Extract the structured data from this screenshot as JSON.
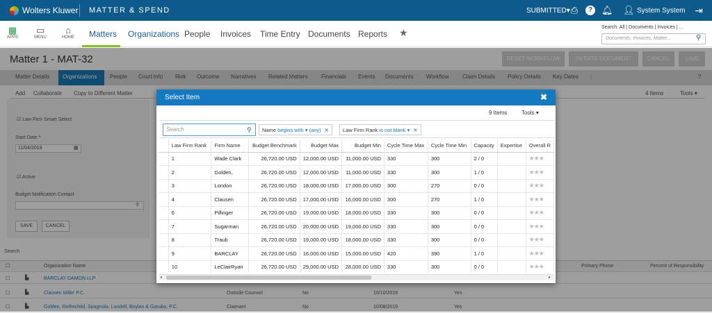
{
  "topbar": {
    "brand": "Wolters Kluwer",
    "product": "MATTER & SPEND",
    "submitted": "SUBMITTED▾",
    "user": "System System"
  },
  "apps": [
    {
      "label": "APPS",
      "glyph": "▦"
    },
    {
      "label": "MENU",
      "glyph": "▭"
    },
    {
      "label": "HOME",
      "glyph": "⌂"
    }
  ],
  "nav": {
    "items": [
      "Matters",
      "Organizations",
      "People",
      "Invoices",
      "Time Entry",
      "Documents",
      "Reports",
      "★"
    ],
    "search_scope": "Search: All | Documents | Invoices | ...",
    "search_placeholder": "Documents, Invoices, Matter..."
  },
  "matter": {
    "title": "Matter 1 - MAT-32",
    "buttons": [
      "RESET WORKFLOW",
      "INITIATE DOCUMENT",
      "CANCEL",
      "SAVE"
    ]
  },
  "tabs": [
    "Matter Details",
    "Organizations",
    "People",
    "Court Info",
    "Risk",
    "Outcome",
    "Narratives",
    "Related Matters",
    "Financials",
    "Events",
    "Documents",
    "Workflow",
    "Claim Details",
    "Policy Details",
    "Key Dates"
  ],
  "subtabs": [
    "Add",
    "Collaborate",
    "Copy to Different Matter"
  ],
  "subright": {
    "items": "4 Items",
    "tools": "Tools ▾"
  },
  "leftpanel": {
    "smart_select": "Law Firm Smart Select",
    "start_date_label": "Start Date *",
    "start_date": "11/04/2019",
    "active": "Active",
    "budget_contact": "Budget Notification Contact",
    "save": "SAVE",
    "cancel": "CANCEL"
  },
  "bottom": {
    "search": "Search",
    "headers": [
      "Organization Name",
      "Primary Phone",
      "Percent of Responsibility"
    ],
    "rows": [
      [
        "BARCLAY DAMON LLP",
        "",
        "",
        "",
        ""
      ],
      [
        "Clausen Miller P.C.",
        "Outside Counsel",
        "No",
        "10/10/2019",
        "Yes"
      ],
      [
        "Golden, Rothschild, Spagnola, Lundell, Boylan & Garubo, P.C.",
        "Claimant",
        "No",
        "10/08/2019",
        "Yes"
      ]
    ]
  },
  "modal": {
    "title": "Select Item",
    "close": "✖",
    "count": "9 Items",
    "tools": "Tools ▾",
    "search_placeholder": "Search",
    "filters": [
      {
        "field": "Name",
        "op": "begins with ▾",
        "value": "(any)"
      },
      {
        "field": "Law Firm Rank",
        "op": "is not blank ▾",
        "value": ""
      }
    ],
    "columns": [
      "Law Firm Rank",
      "Firm Name",
      "Budget Benchmark",
      "Budget Max",
      "Budget Min",
      "Cycle Time Max",
      "Cycle Time Min",
      "Capacity",
      "Expertise",
      "Overall R"
    ],
    "rows": [
      [
        "1",
        "Wade Clark",
        "26,720.00 USD",
        "12,000.00 USD",
        "11,000.00 USD",
        "330",
        "300",
        "2 / 0",
        "",
        ""
      ],
      [
        "2",
        "Golden,",
        "26,720.00 USD",
        "12,000.00 USD",
        "11,000.00 USD",
        "330",
        "300",
        "1 / 0",
        "",
        ""
      ],
      [
        "3",
        "London",
        "26,720.00 USD",
        "18,000.00 USD",
        "17,000.00 USD",
        "300",
        "270",
        "0 / 0",
        "",
        ""
      ],
      [
        "4",
        "Clausen",
        "26,720.00 USD",
        "17,000.00 USD",
        "16,000.00 USD",
        "300",
        "270",
        "1 / 0",
        "",
        ""
      ],
      [
        "6",
        "Pillinger",
        "26,720.00 USD",
        "19,000.00 USD",
        "18,000.00 USD",
        "330",
        "300",
        "0 / 0",
        "",
        ""
      ],
      [
        "7",
        "Sugarman",
        "26,720.00 USD",
        "20,000.00 USD",
        "19,000.00 USD",
        "330",
        "300",
        "0 / 0",
        "",
        ""
      ],
      [
        "8",
        "Traub",
        "26,720.00 USD",
        "19,000.00 USD",
        "18,000.00 USD",
        "330",
        "300",
        "0 / 0",
        "",
        ""
      ],
      [
        "9",
        "BARCLAY",
        "26,720.00 USD",
        "16,000.00 USD",
        "15,000.00 USD",
        "420",
        "390",
        "1 / 0",
        "",
        ""
      ],
      [
        "10",
        "LeClairRyan",
        "26,720.00 USD",
        "29,000.00 USD",
        "28,000.00 USD",
        "330",
        "300",
        "0 / 0",
        "",
        ""
      ]
    ]
  },
  "icons": {
    "stars": "★★★",
    "search": "search-icon"
  }
}
